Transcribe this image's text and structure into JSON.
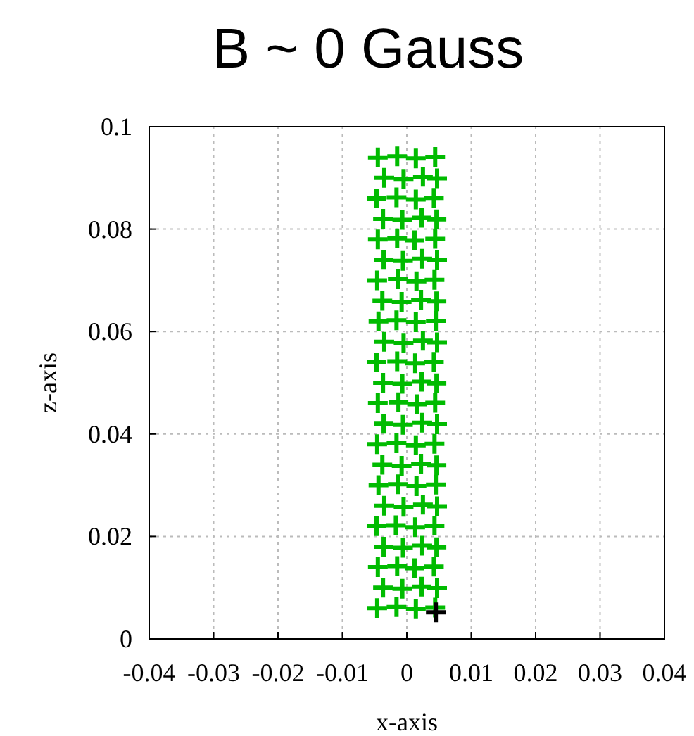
{
  "chart_data": {
    "type": "scatter",
    "title": "B ~ 0 Gauss",
    "xlabel": "x-axis",
    "ylabel": "z-axis",
    "xlim": [
      -0.04,
      0.04
    ],
    "ylim": [
      0,
      0.1
    ],
    "xticks": [
      -0.04,
      -0.03,
      -0.02,
      -0.01,
      0,
      0.01,
      0.02,
      0.03,
      0.04
    ],
    "yticks": [
      0,
      0.02,
      0.04,
      0.06,
      0.08,
      0.1
    ],
    "grid": true,
    "marker": "cross",
    "series": [
      {
        "color": "#00bb00",
        "x": [
          -0.0046,
          -0.0016,
          0.0014,
          0.0044,
          -0.0037,
          -0.0007,
          0.0023,
          0.0047,
          -0.0045,
          -0.0015,
          0.0012,
          0.0042,
          -0.0036,
          -0.0006,
          0.0024,
          0.0046,
          -0.0047,
          -0.0017,
          0.0013,
          0.0043,
          -0.0035,
          -0.0005,
          0.0025,
          0.0047,
          -0.0044,
          -0.0014,
          0.0015,
          0.0045,
          -0.0038,
          -0.0008,
          0.0022,
          0.0046,
          -0.0046,
          -0.0016,
          0.0014,
          0.0043,
          -0.0036,
          -0.0006,
          0.0024,
          0.0047,
          -0.0045,
          -0.0013,
          0.0016,
          0.0044,
          -0.0037,
          -0.0007,
          0.0023,
          0.0046,
          -0.0047,
          -0.0015,
          0.0013,
          0.0042,
          -0.0035,
          -0.0005,
          0.0025,
          0.0047,
          -0.0044,
          -0.0016,
          0.0014,
          0.0045,
          -0.0038,
          -0.0008,
          0.0022,
          0.0046,
          -0.0046,
          -0.0014,
          0.0015,
          0.0043,
          -0.0036,
          -0.0006,
          0.0024,
          0.0047,
          -0.0045,
          -0.0015,
          0.0012,
          0.0044,
          -0.0037,
          -0.0007,
          0.0023,
          0.0046,
          -0.0047,
          -0.0016,
          0.0014,
          0.0042,
          -0.0035,
          -0.0005,
          0.0025,
          0.0047,
          -0.0045,
          -0.0015,
          0.0014,
          0.0044
        ],
        "values": [
          0.006,
          0.0062,
          0.0058,
          0.0061,
          0.01,
          0.0098,
          0.0102,
          0.0099,
          0.014,
          0.0142,
          0.0138,
          0.0141,
          0.018,
          0.0178,
          0.0182,
          0.0179,
          0.022,
          0.0222,
          0.0218,
          0.0221,
          0.026,
          0.0258,
          0.0262,
          0.0259,
          0.03,
          0.0302,
          0.0298,
          0.0301,
          0.034,
          0.0338,
          0.0342,
          0.0339,
          0.038,
          0.0382,
          0.0378,
          0.0381,
          0.042,
          0.0418,
          0.0422,
          0.0419,
          0.046,
          0.0462,
          0.0458,
          0.0461,
          0.05,
          0.0498,
          0.0502,
          0.0499,
          0.054,
          0.0542,
          0.0538,
          0.0541,
          0.058,
          0.0578,
          0.0582,
          0.0579,
          0.062,
          0.0622,
          0.0618,
          0.0621,
          0.066,
          0.0658,
          0.0662,
          0.0659,
          0.07,
          0.0702,
          0.0698,
          0.0701,
          0.074,
          0.0738,
          0.0742,
          0.0739,
          0.078,
          0.0782,
          0.0778,
          0.0781,
          0.082,
          0.0818,
          0.0822,
          0.0819,
          0.086,
          0.0862,
          0.0858,
          0.0861,
          0.09,
          0.0898,
          0.0902,
          0.0899,
          0.094,
          0.0942,
          0.0938,
          0.0941
        ]
      },
      {
        "color": "#000000",
        "x": [
          0.0045
        ],
        "values": [
          0.0052
        ]
      }
    ]
  }
}
